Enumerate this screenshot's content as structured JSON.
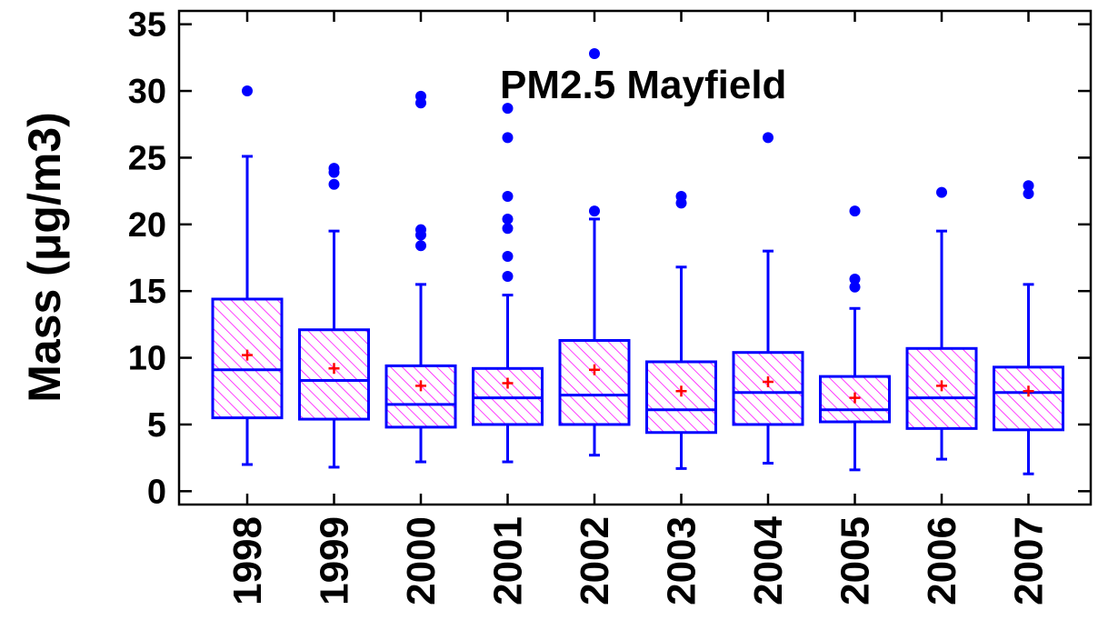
{
  "chart_data": {
    "type": "box",
    "title": "PM2.5 Mayfield",
    "y_label": "Mass (μg/m3)",
    "categories": [
      "1998",
      "1999",
      "2000",
      "2001",
      "2002",
      "2003",
      "2004",
      "2005",
      "2006",
      "2007"
    ],
    "box_color": "#0000ff",
    "hatch_color": "#ff00ff",
    "mean_color": "#ff0000",
    "outlier_color": "#0000ff",
    "ylim": [
      -1,
      36
    ],
    "yticks": [
      0,
      5,
      10,
      15,
      20,
      25,
      30,
      35
    ],
    "boxes": [
      {
        "whisker_low": 2.0,
        "q1": 5.5,
        "median": 9.1,
        "q3": 14.4,
        "whisker_high": 25.1,
        "mean": 10.2,
        "outliers": [
          30.0
        ]
      },
      {
        "whisker_low": 1.8,
        "q1": 5.4,
        "median": 8.3,
        "q3": 12.1,
        "whisker_high": 19.5,
        "mean": 9.2,
        "outliers": [
          24.2,
          23.9,
          23.0
        ]
      },
      {
        "whisker_low": 2.2,
        "q1": 4.8,
        "median": 6.5,
        "q3": 9.4,
        "whisker_high": 15.5,
        "mean": 7.9,
        "outliers": [
          18.4,
          19.2,
          19.6,
          29.1,
          29.6
        ]
      },
      {
        "whisker_low": 2.2,
        "q1": 5.0,
        "median": 7.0,
        "q3": 9.2,
        "whisker_high": 14.7,
        "mean": 8.1,
        "outliers": [
          16.1,
          17.6,
          19.7,
          20.4,
          22.1,
          26.5,
          28.7
        ]
      },
      {
        "whisker_low": 2.7,
        "q1": 5.0,
        "median": 7.2,
        "q3": 11.3,
        "whisker_high": 20.4,
        "mean": 9.1,
        "outliers": [
          21.0,
          32.8
        ]
      },
      {
        "whisker_low": 1.7,
        "q1": 4.4,
        "median": 6.1,
        "q3": 9.7,
        "whisker_high": 16.8,
        "mean": 7.5,
        "outliers": [
          21.6,
          22.1
        ]
      },
      {
        "whisker_low": 2.1,
        "q1": 5.0,
        "median": 7.4,
        "q3": 10.4,
        "whisker_high": 18.0,
        "mean": 8.2,
        "outliers": [
          26.5
        ]
      },
      {
        "whisker_low": 1.6,
        "q1": 5.2,
        "median": 6.1,
        "q3": 8.6,
        "whisker_high": 13.7,
        "mean": 7.0,
        "outliers": [
          15.3,
          15.9,
          21.0
        ]
      },
      {
        "whisker_low": 2.4,
        "q1": 4.7,
        "median": 7.0,
        "q3": 10.7,
        "whisker_high": 19.5,
        "mean": 7.9,
        "outliers": [
          22.4
        ]
      },
      {
        "whisker_low": 1.3,
        "q1": 4.6,
        "median": 7.4,
        "q3": 9.3,
        "whisker_high": 15.5,
        "mean": 7.5,
        "outliers": [
          22.3,
          22.9
        ]
      }
    ]
  }
}
